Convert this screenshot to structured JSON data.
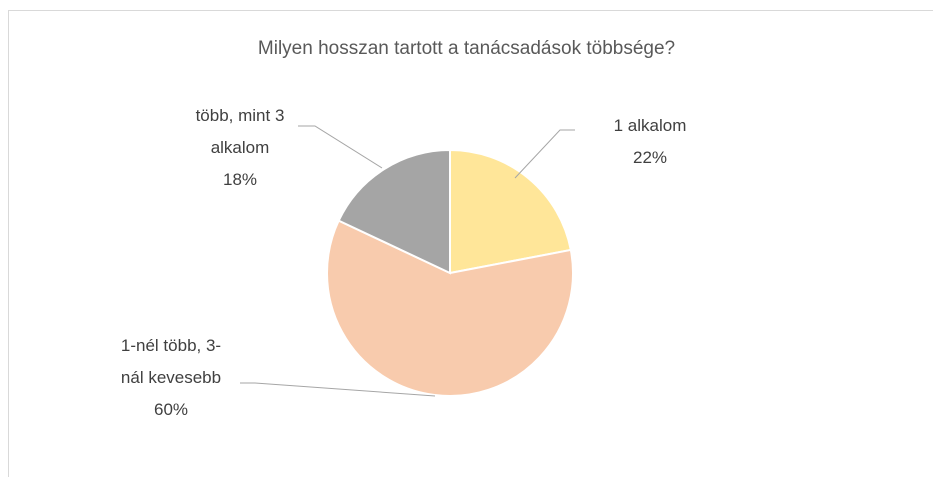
{
  "chart_data": {
    "type": "pie",
    "title": "Milyen hosszan tartott a tanácsadások többsége?",
    "categories": [
      "1 alkalom",
      "1-nél több, 3-nál kevesebb",
      "több, mint 3 alkalom"
    ],
    "values": [
      22,
      60,
      18
    ],
    "value_labels": [
      "22%",
      "60%",
      "18%"
    ],
    "colors": [
      "#FFE699",
      "#F8CBAD",
      "#A5A5A5"
    ]
  }
}
